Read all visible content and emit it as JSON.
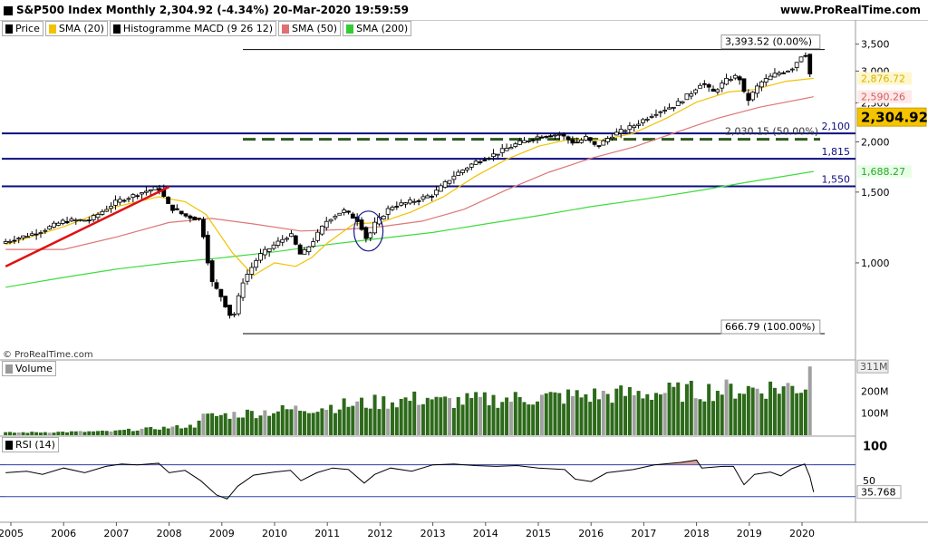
{
  "header": {
    "title": "S&P500 Index Monthly 2,304.92 (-4.34%) 20-Mar-2020 19:59:59",
    "site": "www.ProRealTime.com",
    "copyright": "© ProRealTime.com"
  },
  "legend": [
    {
      "label": "Price",
      "color": "#000000"
    },
    {
      "label": "SMA (20)",
      "color": "#f2c200"
    },
    {
      "label": "Histogramme MACD (9 26 12)",
      "color": "#000000"
    },
    {
      "label": "SMA (50)",
      "color": "#e07070"
    },
    {
      "label": "SMA (200)",
      "color": "#33cc33"
    }
  ],
  "panels": {
    "volume_label": "Volume",
    "rsi_label": "RSI (14)"
  },
  "chart_data": {
    "type": "candlestick",
    "title": "S&P500 Index Monthly",
    "x_ticks": [
      "2005",
      "2006",
      "2007",
      "2008",
      "2009",
      "2010",
      "2011",
      "2012",
      "2013",
      "2014",
      "2015",
      "2016",
      "2017",
      "2018",
      "2019",
      "2020"
    ],
    "y_scale": "log",
    "y_ticks": [
      "3,500",
      "3,000",
      "2,500",
      "2,000",
      "1,500",
      "1,000"
    ],
    "y_tick_values": [
      3500,
      3000,
      2500,
      2000,
      1500,
      1000
    ],
    "ylim": [
      620,
      3700
    ],
    "price_points": [
      [
        2004.9,
        1130
      ],
      [
        2005.5,
        1190
      ],
      [
        2006.0,
        1270
      ],
      [
        2006.5,
        1280
      ],
      [
        2007.0,
        1420
      ],
      [
        2007.5,
        1500
      ],
      [
        2007.8,
        1540
      ],
      [
        2008.0,
        1380
      ],
      [
        2008.3,
        1310
      ],
      [
        2008.6,
        1280
      ],
      [
        2008.8,
        900
      ],
      [
        2009.0,
        820
      ],
      [
        2009.2,
        720
      ],
      [
        2009.4,
        900
      ],
      [
        2009.7,
        1040
      ],
      [
        2010.0,
        1110
      ],
      [
        2010.3,
        1180
      ],
      [
        2010.5,
        1040
      ],
      [
        2010.7,
        1120
      ],
      [
        2011.0,
        1280
      ],
      [
        2011.3,
        1350
      ],
      [
        2011.6,
        1270
      ],
      [
        2011.75,
        1140
      ],
      [
        2011.9,
        1250
      ],
      [
        2012.2,
        1380
      ],
      [
        2012.6,
        1420
      ],
      [
        2013.0,
        1480
      ],
      [
        2013.4,
        1650
      ],
      [
        2013.8,
        1780
      ],
      [
        2014.2,
        1870
      ],
      [
        2014.6,
        1980
      ],
      [
        2015.0,
        2060
      ],
      [
        2015.4,
        2090
      ],
      [
        2015.7,
        1980
      ],
      [
        2015.9,
        2050
      ],
      [
        2016.1,
        1940
      ],
      [
        2016.4,
        2080
      ],
      [
        2016.8,
        2190
      ],
      [
        2017.2,
        2360
      ],
      [
        2017.6,
        2470
      ],
      [
        2017.9,
        2650
      ],
      [
        2018.1,
        2820
      ],
      [
        2018.3,
        2650
      ],
      [
        2018.6,
        2870
      ],
      [
        2018.8,
        2920
      ],
      [
        2018.95,
        2510
      ],
      [
        2019.2,
        2800
      ],
      [
        2019.5,
        2950
      ],
      [
        2019.8,
        3040
      ],
      [
        2019.95,
        3230
      ],
      [
        2020.05,
        3380
      ],
      [
        2020.15,
        2950
      ],
      [
        2020.22,
        2305
      ]
    ],
    "sma20_points": [
      [
        2004.9,
        1110
      ],
      [
        2006.0,
        1230
      ],
      [
        2007.0,
        1380
      ],
      [
        2007.8,
        1460
      ],
      [
        2008.3,
        1420
      ],
      [
        2008.7,
        1320
      ],
      [
        2009.2,
        1060
      ],
      [
        2009.6,
        930
      ],
      [
        2010.0,
        1000
      ],
      [
        2010.4,
        980
      ],
      [
        2010.7,
        1030
      ],
      [
        2011.0,
        1120
      ],
      [
        2011.5,
        1250
      ],
      [
        2012.0,
        1260
      ],
      [
        2012.6,
        1340
      ],
      [
        2013.2,
        1460
      ],
      [
        2013.8,
        1640
      ],
      [
        2014.4,
        1810
      ],
      [
        2015.0,
        1950
      ],
      [
        2015.6,
        2030
      ],
      [
        2016.2,
        2020
      ],
      [
        2016.8,
        2100
      ],
      [
        2017.4,
        2280
      ],
      [
        2018.0,
        2510
      ],
      [
        2018.6,
        2660
      ],
      [
        2019.1,
        2700
      ],
      [
        2019.7,
        2830
      ],
      [
        2020.22,
        2877
      ]
    ],
    "sma50_points": [
      [
        2004.9,
        1080
      ],
      [
        2006.0,
        1080
      ],
      [
        2007.0,
        1160
      ],
      [
        2008.0,
        1260
      ],
      [
        2008.8,
        1290
      ],
      [
        2009.6,
        1250
      ],
      [
        2010.5,
        1200
      ],
      [
        2011.3,
        1210
      ],
      [
        2012.0,
        1230
      ],
      [
        2012.8,
        1270
      ],
      [
        2013.6,
        1360
      ],
      [
        2014.4,
        1520
      ],
      [
        2015.2,
        1680
      ],
      [
        2016.0,
        1820
      ],
      [
        2016.8,
        1940
      ],
      [
        2017.6,
        2110
      ],
      [
        2018.4,
        2290
      ],
      [
        2019.2,
        2440
      ],
      [
        2020.22,
        2590
      ]
    ],
    "sma200_points": [
      [
        2004.9,
        870
      ],
      [
        2006.0,
        920
      ],
      [
        2007.0,
        965
      ],
      [
        2008.0,
        1000
      ],
      [
        2009.0,
        1030
      ],
      [
        2010.0,
        1065
      ],
      [
        2011.0,
        1110
      ],
      [
        2012.0,
        1150
      ],
      [
        2013.0,
        1190
      ],
      [
        2014.0,
        1250
      ],
      [
        2015.0,
        1310
      ],
      [
        2016.0,
        1380
      ],
      [
        2017.0,
        1440
      ],
      [
        2018.0,
        1510
      ],
      [
        2019.0,
        1590
      ],
      [
        2020.22,
        1688
      ]
    ],
    "trendline": {
      "from": [
        2004.9,
        980
      ],
      "to": [
        2008.0,
        1545
      ]
    },
    "horizontal_levels": [
      {
        "value": 3393.52,
        "label": "3,393.52 (0.00%)",
        "color": "#000000"
      },
      {
        "value": 2100,
        "label": "2,100",
        "color": "#0b0b80"
      },
      {
        "value": 2030.15,
        "label": "2,030.15 (50.00%)",
        "color": "#2f5a1e",
        "dashed": true
      },
      {
        "value": 1815,
        "label": "1,815",
        "color": "#0b0b80"
      },
      {
        "value": 1550,
        "label": "1,550",
        "color": "#0b0b80"
      },
      {
        "value": 666.79,
        "label": "666.79 (100.00%)",
        "color": "#000000"
      }
    ],
    "value_tags": [
      {
        "value": 2876.72,
        "label": "2,876.72",
        "color": "#d7b300",
        "bg": "#fff7cc"
      },
      {
        "value": 2590.26,
        "label": "2,590.26",
        "color": "#d06060",
        "bg": "#ffe8e8"
      },
      {
        "value": 2304.92,
        "label": "2,304.92",
        "color": "#000000",
        "bg": "#f5c400",
        "big": true
      },
      {
        "value": 1688.27,
        "label": "1,688.27",
        "color": "#2aa52a",
        "bg": "#e7ffe7"
      }
    ],
    "volume": {
      "ticks": [
        "200M",
        "100M"
      ],
      "tick_values": [
        200,
        100
      ],
      "ymax": 320,
      "last_label": "311M"
    },
    "rsi": {
      "ticks": [
        "100",
        "50"
      ],
      "tick_values": [
        100,
        50
      ],
      "upper_line": 70,
      "lower_line": 30,
      "last_label": "35.768",
      "last_value": 35.768,
      "points": [
        [
          2004.9,
          60
        ],
        [
          2005.3,
          62
        ],
        [
          2005.6,
          58
        ],
        [
          2006.0,
          66
        ],
        [
          2006.4,
          60
        ],
        [
          2006.8,
          68
        ],
        [
          2007.1,
          71
        ],
        [
          2007.4,
          70
        ],
        [
          2007.8,
          72
        ],
        [
          2008.0,
          60
        ],
        [
          2008.3,
          63
        ],
        [
          2008.6,
          50
        ],
        [
          2008.9,
          32
        ],
        [
          2009.1,
          27
        ],
        [
          2009.3,
          43
        ],
        [
          2009.6,
          57
        ],
        [
          2010.0,
          61
        ],
        [
          2010.3,
          63
        ],
        [
          2010.5,
          50
        ],
        [
          2010.8,
          60
        ],
        [
          2011.1,
          66
        ],
        [
          2011.4,
          64
        ],
        [
          2011.7,
          47
        ],
        [
          2011.9,
          58
        ],
        [
          2012.2,
          66
        ],
        [
          2012.6,
          62
        ],
        [
          2013.0,
          70
        ],
        [
          2013.4,
          71
        ],
        [
          2013.8,
          69
        ],
        [
          2014.2,
          68
        ],
        [
          2014.6,
          69
        ],
        [
          2015.0,
          66
        ],
        [
          2015.5,
          64
        ],
        [
          2015.7,
          52
        ],
        [
          2016.0,
          49
        ],
        [
          2016.3,
          60
        ],
        [
          2016.8,
          64
        ],
        [
          2017.2,
          70
        ],
        [
          2017.7,
          73
        ],
        [
          2018.0,
          76
        ],
        [
          2018.1,
          66
        ],
        [
          2018.5,
          68
        ],
        [
          2018.7,
          68
        ],
        [
          2018.9,
          45
        ],
        [
          2019.1,
          58
        ],
        [
          2019.4,
          61
        ],
        [
          2019.6,
          56
        ],
        [
          2019.8,
          65
        ],
        [
          2020.05,
          71
        ],
        [
          2020.15,
          55
        ],
        [
          2020.22,
          35.768
        ]
      ]
    }
  }
}
